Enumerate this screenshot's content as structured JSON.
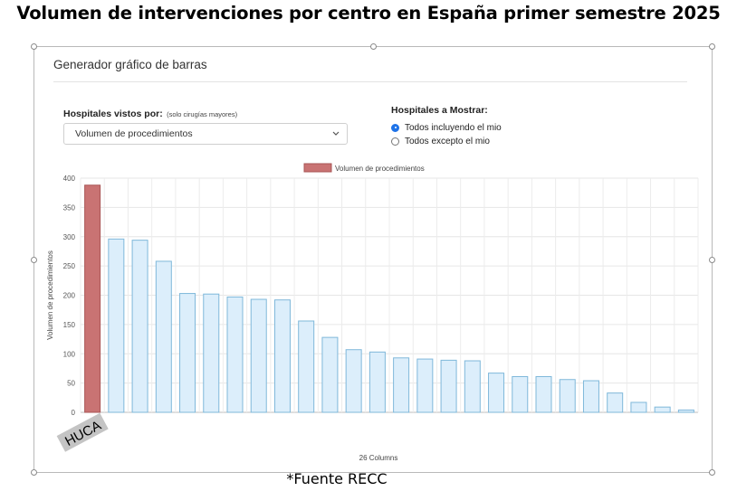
{
  "page": {
    "title": "Volumen de intervenciones por centro en España primer semestre 2025",
    "source_note": "*Fuente RECC"
  },
  "card": {
    "title": "Generador gráfico de barras"
  },
  "form": {
    "hospitals_seen_by_label": "Hospitales vistos por:",
    "hospitals_seen_by_note": "(solo cirugías mayores)",
    "metric_select_value": "Volumen de procedimientos",
    "show_hospitals_label": "Hospitales a Mostrar:",
    "radio_options": [
      {
        "label": "Todos incluyendo el mio",
        "checked": true
      },
      {
        "label": "Todos excepto el mio",
        "checked": false
      }
    ]
  },
  "colors": {
    "highlight_bar_fill": "#c97373",
    "highlight_bar_stroke": "#a85555",
    "bar_fill": "#dceefb",
    "bar_stroke": "#7fb8da",
    "radio_accent": "#1e73e8"
  },
  "chart_data": {
    "type": "bar",
    "legend": "Volumen de procedimientos",
    "legend_position": "top",
    "ylabel": "Volumen de procedimientos",
    "xlabel": "26 Columns",
    "ylim": [
      0,
      400
    ],
    "yticks": [
      "0",
      "50",
      "100",
      "150",
      "200",
      "250",
      "300",
      "350",
      "400"
    ],
    "grid": true,
    "highlight_label": "HUCA",
    "highlight_index": 0,
    "values": [
      388,
      296,
      294,
      258,
      203,
      202,
      197,
      193,
      192,
      156,
      128,
      107,
      103,
      93,
      91,
      89,
      88,
      67,
      61,
      61,
      56,
      54,
      33,
      17,
      9,
      4
    ]
  }
}
